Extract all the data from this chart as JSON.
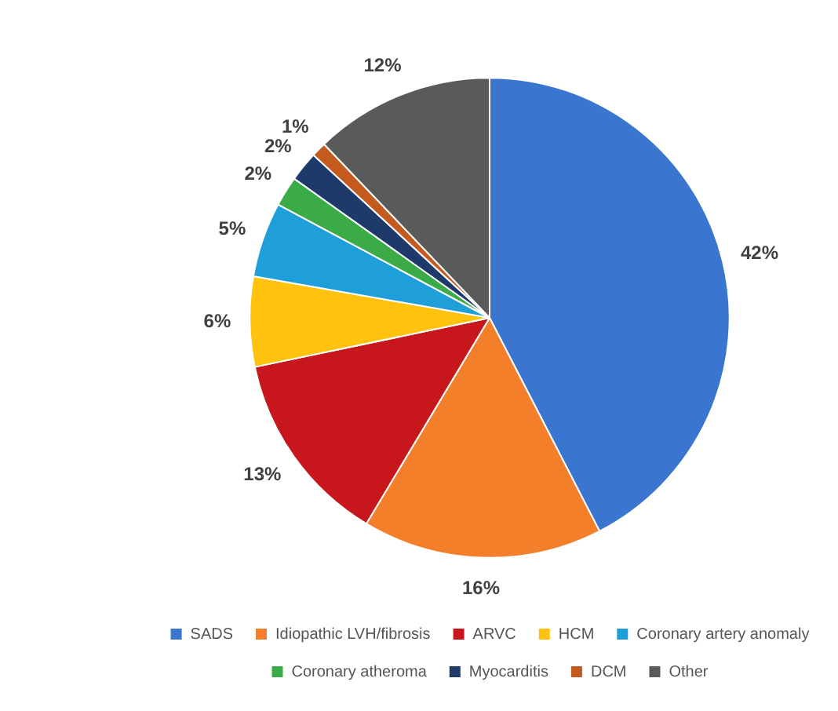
{
  "chart_data": {
    "type": "pie",
    "categories": [
      "SADS",
      "Idiopathic LVH/fibrosis",
      "ARVC",
      "HCM",
      "Coronary artery anomaly",
      "Coronary atheroma",
      "Myocarditis",
      "DCM",
      "Other"
    ],
    "values": [
      42,
      16,
      13,
      6,
      5,
      2,
      2,
      1,
      12
    ],
    "colors": [
      "#3a75cf",
      "#f47f2b",
      "#c8161d",
      "#ffc20e",
      "#1e9fd9",
      "#3bab47",
      "#1d3a6b",
      "#c55a1e",
      "#5a5a5a"
    ],
    "value_labels": [
      "42%",
      "16%",
      "13%",
      "6%",
      "5%",
      "2%",
      "2%",
      "1%",
      "12%"
    ],
    "legend": "bottom"
  }
}
